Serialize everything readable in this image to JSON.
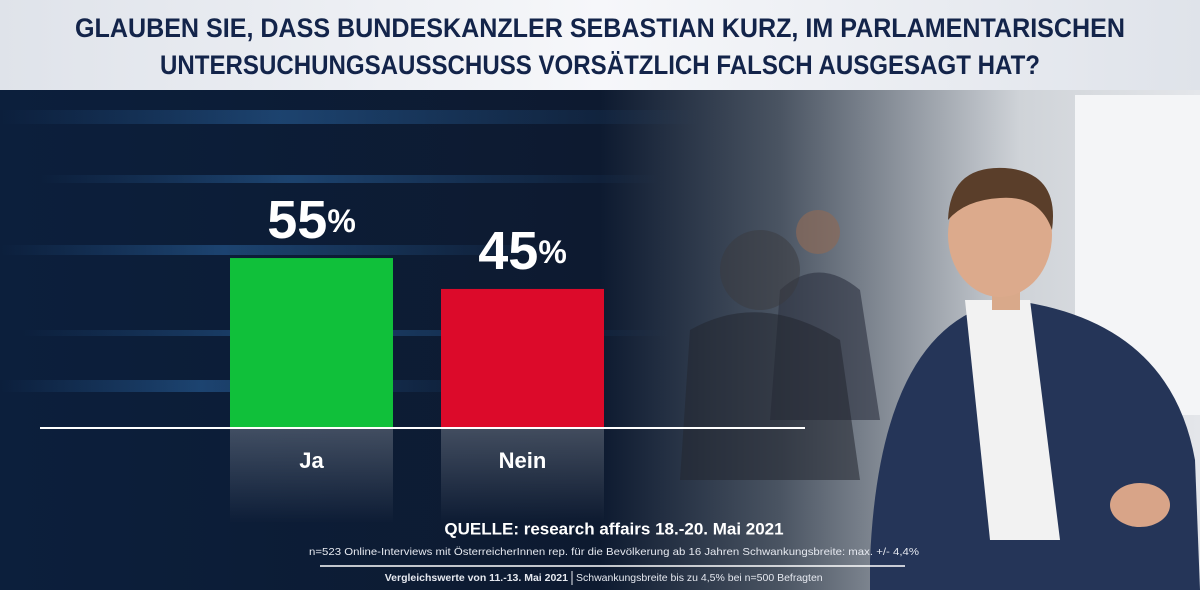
{
  "title_lines": [
    "GLAUBEN SIE, DASS BUNDESKANZLER SEBASTIAN KURZ, IM PARLAMENTARISCHEN",
    "UNTERSUCHUNGSAUSSCHUSS VORSÄTZLICH FALSCH AUSGESAGT HAT?"
  ],
  "chart_data": {
    "type": "bar",
    "categories": [
      "Ja",
      "Nein"
    ],
    "series": [
      {
        "name": null,
        "values": [
          55,
          45
        ],
        "value_labels": [
          "55%",
          "45%"
        ],
        "colors": [
          "#10c03a",
          "#dc0a2a"
        ]
      }
    ],
    "ylim": [
      0,
      100
    ]
  },
  "source": {
    "line": "QUELLE: research affairs 18.-20. Mai 2021",
    "details": "n=523 Online-Interviews mit ÖsterreicherInnen rep. für die Bevölkerung ab 16 Jahren  Schwankungsbreite: max. +/- 4,4%",
    "comparison": "Vergleichswerte von  11.-13. Mai 2021",
    "comparison_note": "Schwankungsbreite bis zu 4,5% bei n=500 Befragten"
  }
}
